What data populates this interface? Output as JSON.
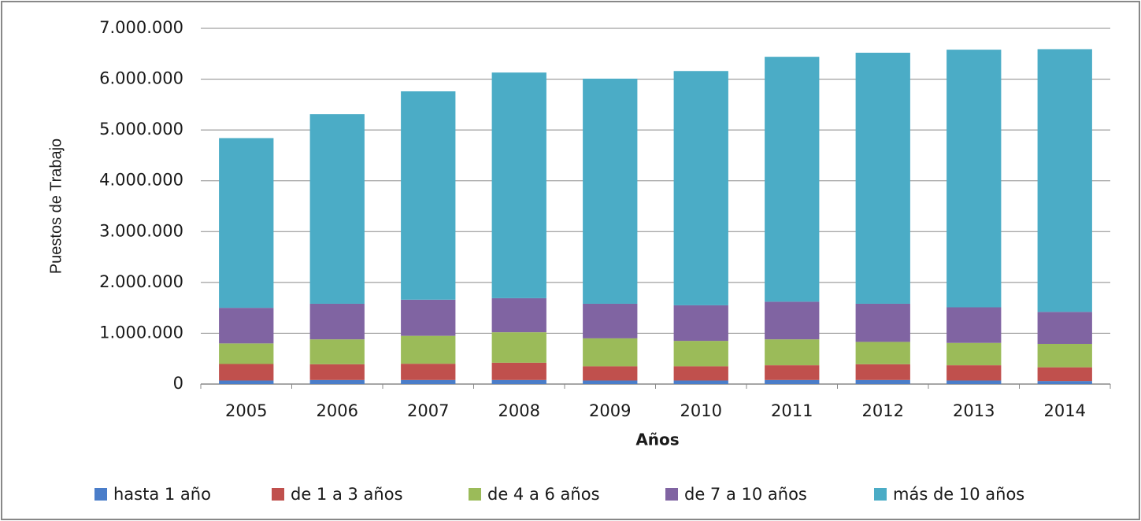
{
  "chart_data": {
    "type": "stacked_bar",
    "x_label": "Años",
    "y_label": "Puestos de Trabajo",
    "categories": [
      "2005",
      "2006",
      "2007",
      "2008",
      "2009",
      "2010",
      "2011",
      "2012",
      "2013",
      "2014"
    ],
    "series": [
      {
        "name": "hasta 1 año",
        "color": "#4a7dc9",
        "values": [
          70000,
          80000,
          80000,
          80000,
          70000,
          70000,
          80000,
          80000,
          70000,
          60000
        ]
      },
      {
        "name": "de 1 a 3 años",
        "color": "#c0504d",
        "values": [
          325000,
          310000,
          320000,
          340000,
          280000,
          280000,
          290000,
          310000,
          300000,
          270000
        ]
      },
      {
        "name": "de 4 a 6 años",
        "color": "#9bbb59",
        "values": [
          405000,
          490000,
          550000,
          600000,
          550000,
          500000,
          510000,
          440000,
          440000,
          460000
        ]
      },
      {
        "name": "de 7 a 10 años",
        "color": "#8064a2",
        "values": [
          700000,
          700000,
          710000,
          670000,
          680000,
          700000,
          740000,
          750000,
          700000,
          630000
        ]
      },
      {
        "name": "más de 10 años",
        "color": "#4bacc6",
        "values": [
          3340000,
          3730000,
          4100000,
          4440000,
          4430000,
          4610000,
          4820000,
          4940000,
          5070000,
          5170000
        ]
      }
    ],
    "ylim": [
      0,
      7000000
    ],
    "yticks": [
      0,
      {
        "value": 1000000,
        "label": "1.000.000"
      },
      {
        "value": 2000000,
        "label": "2.000.000"
      },
      {
        "value": 3000000,
        "label": "3.000.000"
      },
      {
        "value": 4000000,
        "label": "4.000.000"
      },
      {
        "value": 5000000,
        "label": "5.000.000"
      },
      {
        "value": 6000000,
        "label": "6.000.000"
      },
      {
        "value": 7000000,
        "label": "7.000.000"
      }
    ],
    "grid": true
  }
}
